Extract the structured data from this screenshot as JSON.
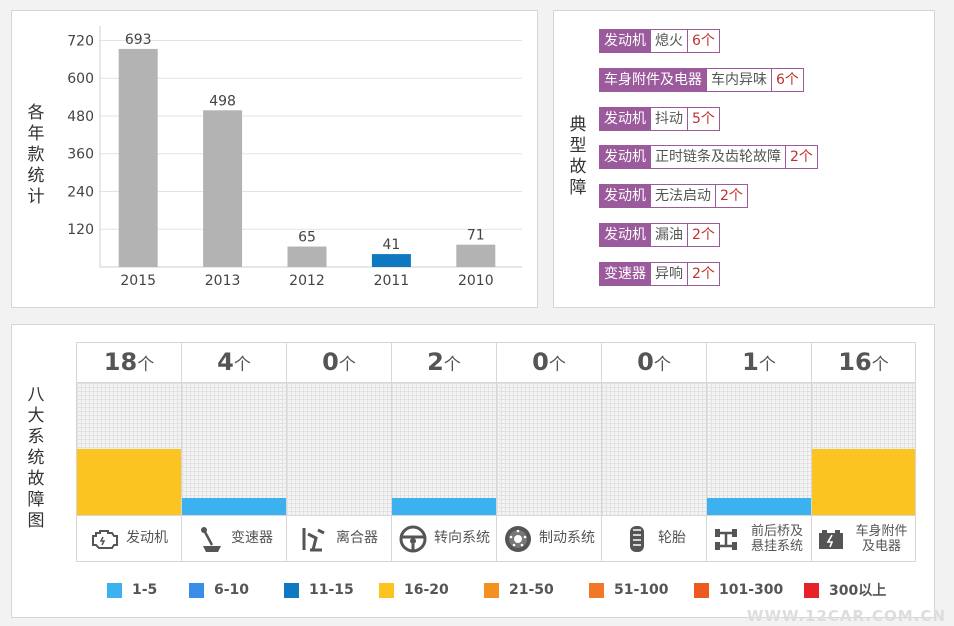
{
  "chart": {
    "title_chars": [
      "各",
      "年",
      "款",
      "统",
      "计"
    ],
    "highlight_color": "#0e78c0",
    "bar_color": "#b3b3b3"
  },
  "chart_data": {
    "type": "bar",
    "categories": [
      "2015",
      "2013",
      "2012",
      "2011",
      "2010"
    ],
    "values": [
      693,
      498,
      65,
      41,
      71
    ],
    "highlight_index": 3,
    "yticks": [
      120,
      240,
      360,
      480,
      600,
      720
    ],
    "ylim": [
      0,
      750
    ],
    "title": "各年款统计",
    "grid": true
  },
  "faults": {
    "title_chars": [
      "典",
      "型",
      "故",
      "障"
    ],
    "items": [
      {
        "system": "发动机",
        "name": "熄火",
        "count": "6个"
      },
      {
        "system": "车身附件及电器",
        "name": "车内异味",
        "count": "6个"
      },
      {
        "system": "发动机",
        "name": "抖动",
        "count": "5个"
      },
      {
        "system": "发动机",
        "name": "正时链条及齿轮故障",
        "count": "2个"
      },
      {
        "system": "发动机",
        "name": "无法启动",
        "count": "2个"
      },
      {
        "system": "发动机",
        "name": "漏油",
        "count": "2个"
      },
      {
        "system": "变速器",
        "name": "异响",
        "count": "2个"
      }
    ]
  },
  "systems": {
    "title_chars": [
      "八",
      "大",
      "系",
      "统",
      "故",
      "障",
      "图"
    ],
    "unit": "个",
    "items": [
      {
        "count": "18",
        "label": "发动机",
        "icon": "engine-icon",
        "fill": 0.5,
        "color": "#fcc420"
      },
      {
        "count": "4",
        "label": "变速器",
        "icon": "gear-shift-icon",
        "fill": 0.13,
        "color": "#3cb1f0"
      },
      {
        "count": "0",
        "label": "离合器",
        "icon": "clutch-pedal-icon",
        "fill": 0,
        "color": "#3cb1f0"
      },
      {
        "count": "2",
        "label": "转向系统",
        "icon": "steering-wheel-icon",
        "fill": 0.13,
        "color": "#3cb1f0"
      },
      {
        "count": "0",
        "label": "制动系统",
        "icon": "brake-disc-icon",
        "fill": 0,
        "color": "#3cb1f0"
      },
      {
        "count": "0",
        "label": "轮胎",
        "icon": "tire-icon",
        "fill": 0,
        "color": "#3cb1f0"
      },
      {
        "count": "1",
        "label": "前后桥及悬挂系统",
        "icon": "axle-icon",
        "fill": 0.13,
        "color": "#3cb1f0"
      },
      {
        "count": "16",
        "label": "车身附件及电器",
        "icon": "battery-icon",
        "fill": 0.5,
        "color": "#fcc420"
      }
    ]
  },
  "legend": [
    {
      "label": "1-5",
      "color": "#3cb1f0"
    },
    {
      "label": "6-10",
      "color": "#3a8ee8"
    },
    {
      "label": "11-15",
      "color": "#0e78c0"
    },
    {
      "label": "16-20",
      "color": "#fcc420"
    },
    {
      "label": "21-50",
      "color": "#f39020"
    },
    {
      "label": "51-100",
      "color": "#f07828"
    },
    {
      "label": "101-300",
      "color": "#ec5a20"
    },
    {
      "label": "300以上",
      "color": "#e8202a"
    }
  ],
  "watermark": "WWW.12CAR.COM.CN"
}
